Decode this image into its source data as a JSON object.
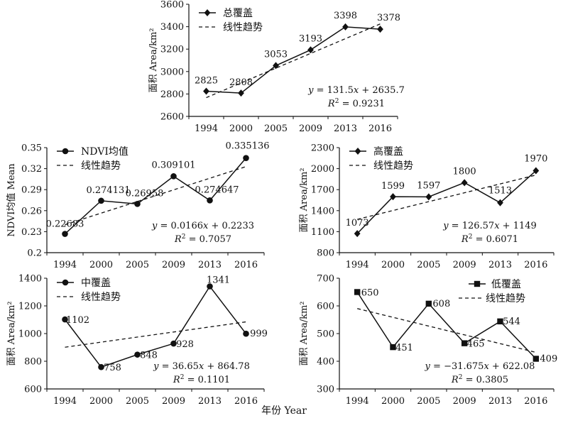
{
  "figure": {
    "x_caption": "年份 Year"
  },
  "chart_data": [
    {
      "id": "total",
      "type": "line",
      "categories": [
        "1994",
        "2000",
        "2005",
        "2009",
        "2013",
        "2016"
      ],
      "series": [
        {
          "name": "总覆盖",
          "values": [
            2825,
            2808,
            3053,
            3193,
            3398,
            3378
          ],
          "marker": "diamond"
        },
        {
          "name": "线性趋势",
          "style": "dashed",
          "slope": 131.5,
          "intercept": 2635.7
        }
      ],
      "data_labels": [
        "2825",
        "2808",
        "3053",
        "3193",
        "3398",
        "3378"
      ],
      "ylabel": "面积 Area/km²",
      "ylim": [
        2600,
        3600
      ],
      "yticks": [
        2600,
        2800,
        3000,
        3200,
        3400,
        3600
      ],
      "ytick_labels": [
        "2600",
        "2800",
        "3000",
        "3200",
        "3400",
        "3600"
      ],
      "equation": {
        "y": "y",
        "eq": " = 131.5",
        "x": "x",
        "rest": " + 2635.7",
        "r": "R",
        "sup": "2",
        "rval": " = 0.9231"
      },
      "legend_position": "top-left",
      "grid": false
    },
    {
      "id": "ndvi",
      "type": "line",
      "categories": [
        "1994",
        "2000",
        "2005",
        "2009",
        "2013",
        "2016"
      ],
      "series": [
        {
          "name": "NDVI均值",
          "values": [
            0.22683,
            0.274131,
            0.26958,
            0.309101,
            0.274647,
            0.335136
          ],
          "marker": "circle"
        },
        {
          "name": "线性趋势",
          "style": "dashed",
          "slope": 0.0166,
          "intercept": 0.2233
        }
      ],
      "data_labels": [
        "0.22683",
        "0.274131",
        "0.26958",
        "0.309101",
        "0.274647",
        "0.335136"
      ],
      "ylabel": "NDVI均值 Mean",
      "ylim": [
        0.2,
        0.35
      ],
      "yticks": [
        0.2,
        0.23,
        0.26,
        0.29,
        0.32,
        0.35
      ],
      "ytick_labels": [
        "0.2",
        "0.23",
        "0.26",
        "0.29",
        "0.32",
        "0.35"
      ],
      "equation": {
        "y": "y",
        "eq": " = 0.0166",
        "x": "x",
        "rest": " + 0.2233",
        "r": "R",
        "sup": "2",
        "rval": " = 0.7057"
      },
      "legend_position": "top-left",
      "grid": false
    },
    {
      "id": "high",
      "type": "line",
      "categories": [
        "1994",
        "2000",
        "2005",
        "2009",
        "2013",
        "2016"
      ],
      "series": [
        {
          "name": "高覆盖",
          "values": [
            1073,
            1599,
            1597,
            1800,
            1513,
            1970
          ],
          "marker": "diamond"
        },
        {
          "name": "线性趋势",
          "style": "dashed",
          "slope": 126.57,
          "intercept": 1149
        }
      ],
      "data_labels": [
        "1073",
        "1599",
        "1597",
        "1800",
        "1513",
        "1970"
      ],
      "ylabel": "面积 Area/km²",
      "ylim": [
        800,
        2300
      ],
      "yticks": [
        800,
        1100,
        1400,
        1700,
        2000,
        2300
      ],
      "ytick_labels": [
        "800",
        "1100",
        "1400",
        "1700",
        "2000",
        "2300"
      ],
      "equation": {
        "y": "y",
        "eq": " = 126.57",
        "x": "x",
        "rest": " + 1149",
        "r": "R",
        "sup": "2",
        "rval": " = 0.6071"
      },
      "legend_position": "top-left",
      "grid": false
    },
    {
      "id": "mid",
      "type": "line",
      "categories": [
        "1994",
        "2000",
        "2005",
        "2009",
        "2013",
        "2016"
      ],
      "series": [
        {
          "name": "中覆盖",
          "values": [
            1102,
            758,
            848,
            928,
            1341,
            999
          ],
          "marker": "circle"
        },
        {
          "name": "线性趋势",
          "style": "dashed",
          "slope": 36.65,
          "intercept": 864.78
        }
      ],
      "data_labels": [
        "1102",
        "758",
        "848",
        "928",
        "1341",
        "999"
      ],
      "ylabel": "面积 Area/km²",
      "ylim": [
        600,
        1400
      ],
      "yticks": [
        600,
        800,
        1000,
        1200,
        1400
      ],
      "ytick_labels": [
        "600",
        "800",
        "1000",
        "1200",
        "1400"
      ],
      "equation": {
        "y": "y",
        "eq": " = 36.65",
        "x": "x",
        "rest": " + 864.78",
        "r": "R",
        "sup": "2",
        "rval": " = 0.1101"
      },
      "legend_position": "top-left",
      "grid": false
    },
    {
      "id": "low",
      "type": "line",
      "categories": [
        "1994",
        "2000",
        "2005",
        "2009",
        "2013",
        "2016"
      ],
      "series": [
        {
          "name": "低覆盖",
          "values": [
            650,
            451,
            608,
            465,
            544,
            409
          ],
          "marker": "square"
        },
        {
          "name": "线性趋势",
          "style": "dashed",
          "slope": -31.675,
          "intercept": 622.08
        }
      ],
      "data_labels": [
        "650",
        "451",
        "608",
        "465",
        "544",
        "409"
      ],
      "ylabel": "面积 Area/km²",
      "ylim": [
        300,
        700
      ],
      "yticks": [
        300,
        400,
        500,
        600,
        700
      ],
      "ytick_labels": [
        "300",
        "400",
        "500",
        "600",
        "700"
      ],
      "equation": {
        "y": "y",
        "eq": " = −31.675",
        "x": "x",
        "rest": " + 622.08",
        "r": "R",
        "sup": "2",
        "rval": " = 0.3805"
      },
      "legend_position": "top-right",
      "grid": false
    }
  ]
}
